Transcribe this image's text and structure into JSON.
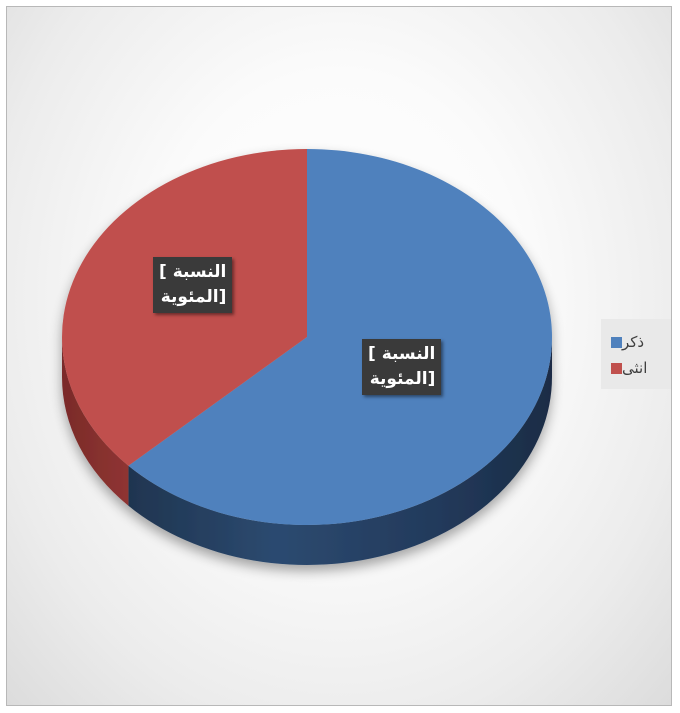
{
  "chart_data": {
    "type": "pie",
    "categories": [
      "ذكر",
      "انثى"
    ],
    "values": [
      63,
      37
    ],
    "colors": [
      "#4f81bd",
      "#c0504d"
    ],
    "data_labels": [
      "[النسبة المئوية]",
      "[النسبة المئوية]"
    ],
    "data_label_lines": [
      [
        "النسبة ]",
        "[المئوية"
      ],
      [
        "النسبة ]",
        "[المئوية"
      ]
    ],
    "legend_position": "right",
    "style": "3d-tilted"
  }
}
